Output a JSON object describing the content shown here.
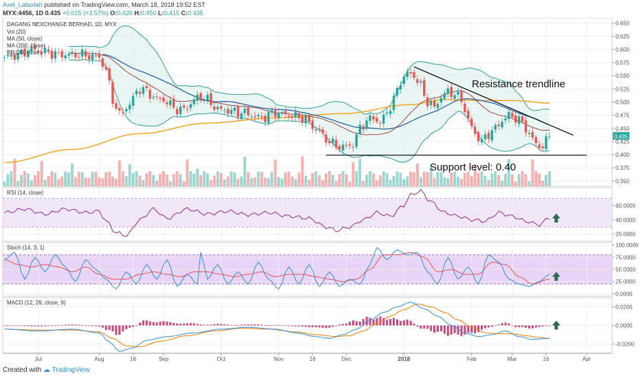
{
  "header": {
    "author": "Axel_Laburlah",
    "published": "published on TradingView.com, March 18, 2018 19:52 EST",
    "symbol": "MYX:4456, 1D",
    "last": "0.435",
    "change": "+0.015 (+3.57%)",
    "o_label": "O:",
    "o": "0.420",
    "h_label": "H:",
    "h": "0.450",
    "l_label": "L:",
    "l": "0.415",
    "c_label": "C:",
    "c": "0.435"
  },
  "footer": {
    "created_with": "Created with",
    "brand": "TradingView"
  },
  "colors": {
    "up": "#26a69a",
    "down": "#ef5350",
    "bb": "#2ba08f",
    "bb_fill": "#dff2ee",
    "ma50": "#2962ad",
    "ma200": "#f5a623",
    "ma20": "#8b1a1a",
    "rsi": "#8e2c8e",
    "rsi_band": "#ead7f5",
    "stoch_k": "#2f8fdd",
    "stoch_d": "#ef5350",
    "stoch_band": "#d9b8f0",
    "macd": "#2f8fdd",
    "signal": "#f57c00",
    "hist": "#c2185b",
    "arrow": "#2e6b4f",
    "price_label_bg": "#26a69a"
  },
  "chart_data": [
    {
      "id": "price",
      "type": "candlestick",
      "title": "DAGANG NEXCHANGE BERHAD, 1D, MYX",
      "legend": [
        "Vol (20)",
        "MA (50, close)",
        "MA (200, close)",
        "BB (20, close)"
      ],
      "last_price_label": "0.435",
      "ylim": [
        0.34,
        0.66
      ],
      "y_ticks": [
        "0.350",
        "0.375",
        "0.400",
        "0.425",
        "0.450",
        "0.475",
        "0.500",
        "0.525",
        "0.550",
        "0.575",
        "0.600",
        "0.625",
        "0.650"
      ],
      "x_ticks": [
        "Jul",
        "Aug",
        "16",
        "Sep",
        "Oct",
        "Nov",
        "16",
        "Dec",
        "2018",
        "Feb",
        "Mar",
        "16",
        "Apr"
      ],
      "x_tick_bar_index": [
        10,
        28,
        38,
        47,
        64,
        81,
        91,
        101,
        118,
        138,
        150,
        160,
        172
      ],
      "num_bars": 180,
      "anchors": {
        "bar": [
          0,
          4,
          8,
          12,
          16,
          22,
          28,
          30,
          32,
          34,
          36,
          40,
          46,
          52,
          58,
          64,
          70,
          76,
          80,
          84,
          88,
          92,
          95,
          97,
          99,
          101,
          103,
          105,
          107,
          109,
          111,
          113,
          115,
          117,
          119,
          121,
          123,
          125,
          127,
          129,
          131,
          133,
          135,
          137,
          139,
          141,
          143,
          145,
          147,
          149,
          151,
          153,
          155,
          157,
          159,
          161
        ],
        "close": [
          0.585,
          0.59,
          0.6,
          0.595,
          0.59,
          0.59,
          0.585,
          0.56,
          0.505,
          0.475,
          0.49,
          0.525,
          0.505,
          0.485,
          0.51,
          0.485,
          0.48,
          0.47,
          0.48,
          0.475,
          0.47,
          0.45,
          0.43,
          0.42,
          0.415,
          0.415,
          0.42,
          0.45,
          0.465,
          0.47,
          0.46,
          0.48,
          0.505,
          0.54,
          0.555,
          0.55,
          0.53,
          0.5,
          0.49,
          0.51,
          0.52,
          0.515,
          0.505,
          0.465,
          0.44,
          0.425,
          0.44,
          0.45,
          0.465,
          0.475,
          0.47,
          0.46,
          0.44,
          0.42,
          0.415,
          0.435
        ]
      },
      "ma200_anchors": {
        "bar": [
          0,
          20,
          40,
          60,
          80,
          100,
          120,
          130,
          140,
          150,
          161
        ],
        "value": [
          0.385,
          0.41,
          0.44,
          0.46,
          0.47,
          0.478,
          0.495,
          0.505,
          0.503,
          0.503,
          0.498
        ]
      },
      "volume_scale_max": 1.0,
      "annotations": [
        {
          "type": "trendline",
          "name": "resistance",
          "label": "Resistance trendline",
          "from": {
            "bar": 121,
            "price": 0.567
          },
          "to": {
            "bar": 168,
            "price": 0.437
          }
        },
        {
          "type": "hline",
          "name": "support",
          "label": "Support level:  0.40",
          "from_bar": 95,
          "to_bar": 172,
          "price": 0.399
        }
      ]
    },
    {
      "id": "rsi",
      "type": "line",
      "title": "RSI (14, close)",
      "ylim": [
        10,
        85
      ],
      "y_ticks": [
        "20.0000",
        "40.0000",
        "60.0000"
      ],
      "y_tick_values": [
        20,
        40,
        60
      ],
      "bands": [
        30,
        70
      ],
      "anchors": {
        "bar": [
          0,
          6,
          12,
          18,
          24,
          28,
          30,
          33,
          36,
          40,
          44,
          48,
          54,
          60,
          66,
          72,
          78,
          84,
          90,
          95,
          98,
          102,
          106,
          110,
          114,
          118,
          120,
          123,
          126,
          130,
          134,
          138,
          142,
          146,
          150,
          154,
          158,
          161
        ],
        "value": [
          50,
          55,
          48,
          55,
          50,
          52,
          38,
          22,
          18,
          40,
          55,
          42,
          55,
          48,
          52,
          47,
          50,
          45,
          42,
          30,
          25,
          30,
          40,
          50,
          45,
          60,
          75,
          80,
          65,
          50,
          45,
          40,
          38,
          50,
          45,
          38,
          33,
          43
        ]
      }
    },
    {
      "id": "stoch",
      "type": "line",
      "title": "Stoch (14, 3, 1)",
      "ylim": [
        -5,
        105
      ],
      "y_ticks": [
        "0.0000",
        "25.0000",
        "50.0000",
        "75.0000",
        "100.0000"
      ],
      "y_tick_values": [
        0,
        25,
        50,
        75,
        100
      ],
      "bands": [
        20,
        80
      ],
      "series": [
        {
          "id": "k",
          "anchors": {
            "bar": [
              0,
              3,
              6,
              9,
              12,
              15,
              18,
              21,
              24,
              27,
              30,
              33,
              36,
              39,
              42,
              45,
              48,
              51,
              54,
              57,
              58,
              60,
              63,
              66,
              69,
              72,
              75,
              78,
              81,
              84,
              87,
              90,
              93,
              96,
              99,
              102,
              105,
              108,
              110,
              113,
              116,
              119,
              122,
              125,
              128,
              131,
              134,
              137,
              140,
              143,
              146,
              149,
              152,
              155,
              158,
              161
            ],
            "value": [
              70,
              85,
              30,
              75,
              45,
              80,
              55,
              25,
              70,
              50,
              30,
              10,
              45,
              20,
              60,
              30,
              70,
              15,
              40,
              20,
              85,
              30,
              60,
              20,
              45,
              20,
              65,
              30,
              10,
              55,
              20,
              60,
              15,
              45,
              15,
              30,
              20,
              60,
              95,
              70,
              90,
              80,
              85,
              45,
              20,
              75,
              30,
              55,
              20,
              80,
              65,
              30,
              20,
              15,
              25,
              40
            ]
          }
        },
        {
          "id": "d",
          "anchors": {
            "bar": [
              0,
              4,
              8,
              12,
              16,
              20,
              24,
              28,
              32,
              36,
              40,
              44,
              48,
              52,
              56,
              60,
              64,
              68,
              72,
              76,
              80,
              84,
              88,
              92,
              96,
              100,
              104,
              108,
              112,
              116,
              120,
              124,
              128,
              132,
              136,
              140,
              144,
              148,
              152,
              156,
              161
            ],
            "value": [
              70,
              60,
              55,
              60,
              55,
              45,
              55,
              40,
              30,
              30,
              40,
              45,
              40,
              35,
              45,
              45,
              40,
              35,
              40,
              45,
              35,
              40,
              40,
              35,
              30,
              25,
              30,
              50,
              80,
              80,
              85,
              75,
              45,
              50,
              40,
              40,
              65,
              60,
              35,
              20,
              30
            ]
          }
        }
      ]
    },
    {
      "id": "macd",
      "type": "line",
      "title": "MACD (12, 26, close, 9)",
      "ylim": [
        -0.03,
        0.03
      ],
      "y_ticks": [
        "-0.0200",
        "0.0000",
        "0.0200"
      ],
      "y_tick_values": [
        -0.02,
        0.0,
        0.02
      ],
      "series": [
        {
          "id": "macd",
          "anchors": {
            "bar": [
              0,
              10,
              20,
              28,
              31,
              34,
              38,
              42,
              48,
              56,
              64,
              72,
              80,
              86,
              92,
              96,
              100,
              104,
              108,
              112,
              116,
              120,
              124,
              128,
              132,
              136,
              140,
              144,
              148,
              152,
              156,
              161
            ],
            "value": [
              -0.004,
              -0.006,
              -0.004,
              -0.008,
              -0.018,
              -0.028,
              -0.024,
              -0.016,
              -0.012,
              -0.008,
              -0.004,
              -0.002,
              -0.004,
              -0.008,
              -0.012,
              -0.014,
              -0.01,
              -0.004,
              0.006,
              0.014,
              0.02,
              0.025,
              0.018,
              0.01,
              0.0,
              -0.008,
              -0.012,
              -0.01,
              -0.006,
              -0.012,
              -0.015,
              -0.014
            ]
          }
        },
        {
          "id": "signal",
          "anchors": {
            "bar": [
              0,
              10,
              20,
              28,
              32,
              36,
              40,
              46,
              54,
              62,
              70,
              78,
              86,
              92,
              98,
              102,
              106,
              110,
              114,
              118,
              122,
              126,
              130,
              134,
              138,
              142,
              146,
              150,
              154,
              158,
              161
            ],
            "value": [
              -0.004,
              -0.005,
              -0.005,
              -0.007,
              -0.014,
              -0.022,
              -0.023,
              -0.017,
              -0.011,
              -0.006,
              -0.003,
              -0.004,
              -0.007,
              -0.01,
              -0.012,
              -0.011,
              -0.006,
              0.002,
              0.01,
              0.017,
              0.023,
              0.02,
              0.014,
              0.006,
              -0.002,
              -0.008,
              -0.009,
              -0.009,
              -0.011,
              -0.013,
              -0.014
            ]
          }
        }
      ]
    }
  ]
}
